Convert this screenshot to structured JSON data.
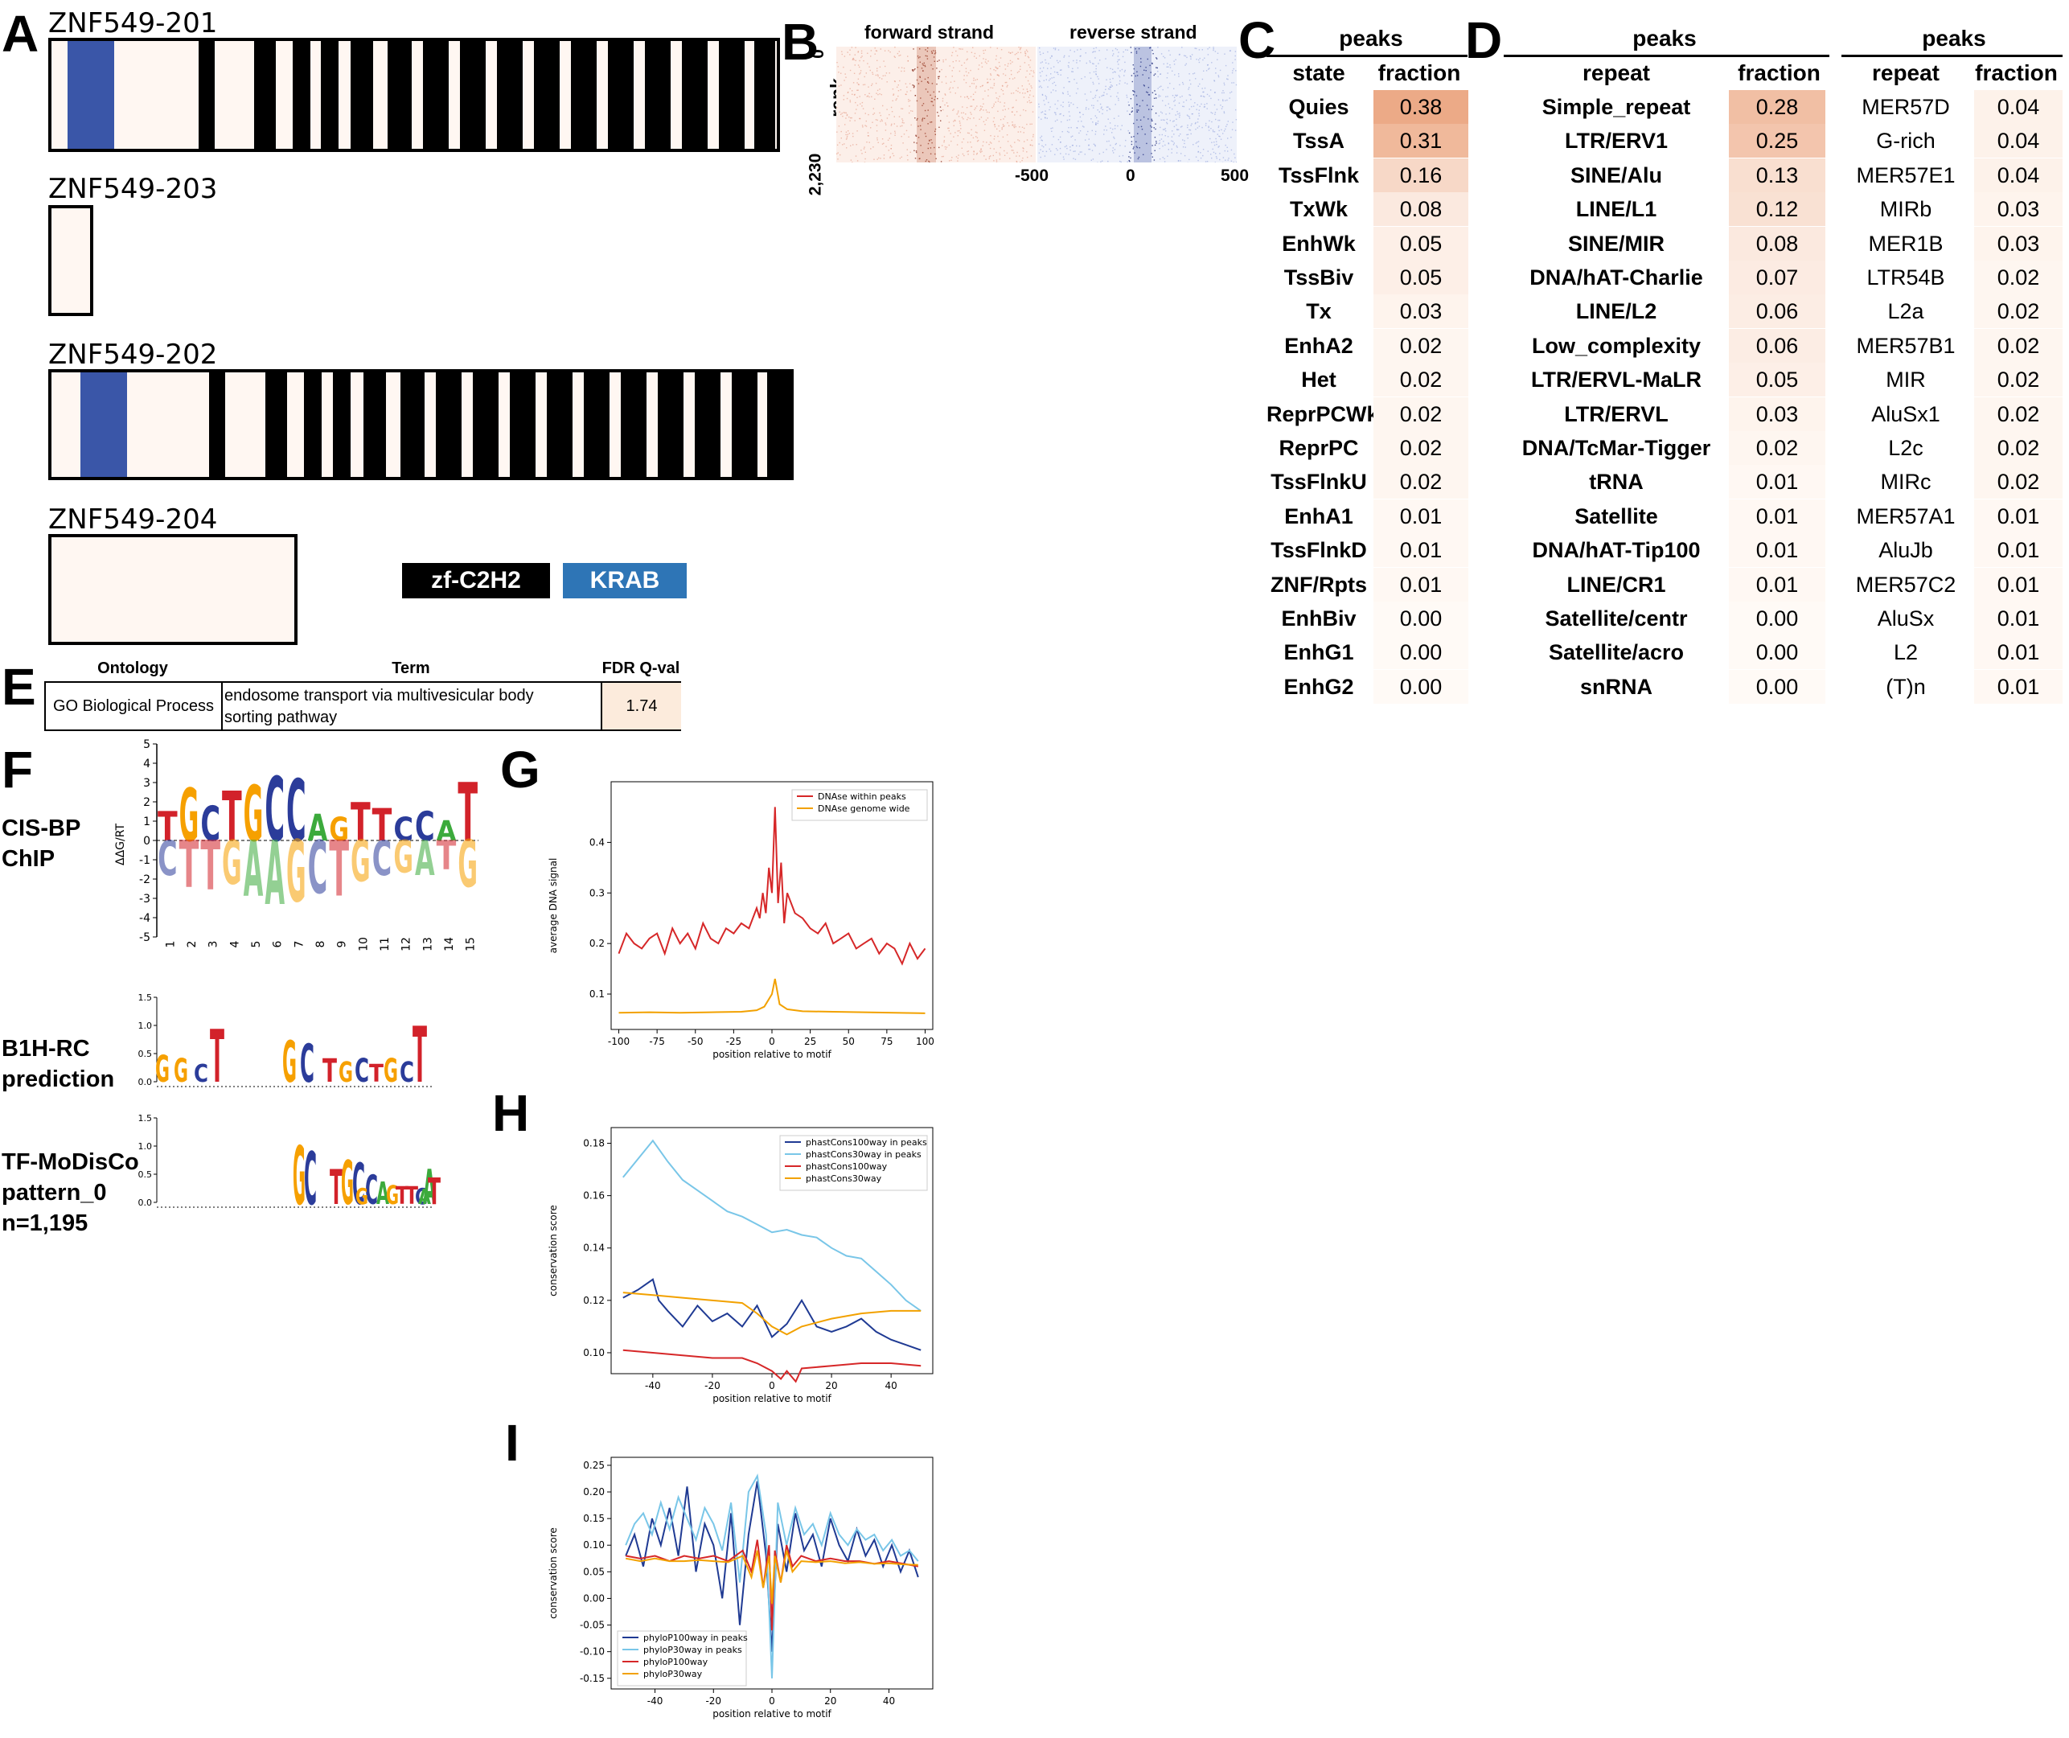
{
  "panels": {
    "A": "A",
    "B": "B",
    "C": "C",
    "D": "D",
    "E": "E",
    "F": "F",
    "G": "G",
    "H": "H",
    "I": "I"
  },
  "panel_a": {
    "isoforms": [
      {
        "name": "ZNF549-201"
      },
      {
        "name": "ZNF549-203"
      },
      {
        "name": "ZNF549-202"
      },
      {
        "name": "ZNF549-204"
      }
    ],
    "legend": [
      {
        "label": "zf-C2H2",
        "color": "#000000"
      },
      {
        "label": "KRAB",
        "color": "#2e75b6"
      }
    ],
    "colors": {
      "krab_domain": "#3a56a8",
      "background": "#fff7f2"
    }
  },
  "panel_b": {
    "forward_label": "forward strand",
    "reverse_label": "reverse strand",
    "y_label": "rank",
    "y_ticks": [
      "0",
      "2,230"
    ],
    "x_ticks": [
      "-500",
      "0",
      "500"
    ]
  },
  "panel_c": {
    "group_header": "peaks",
    "columns": [
      "state",
      "fraction"
    ],
    "rows": [
      {
        "state": "Quies",
        "fraction": "0.38"
      },
      {
        "state": "TssA",
        "fraction": "0.31"
      },
      {
        "state": "TssFlnk",
        "fraction": "0.16"
      },
      {
        "state": "TxWk",
        "fraction": "0.08"
      },
      {
        "state": "EnhWk",
        "fraction": "0.05"
      },
      {
        "state": "TssBiv",
        "fraction": "0.05"
      },
      {
        "state": "Tx",
        "fraction": "0.03"
      },
      {
        "state": "EnhA2",
        "fraction": "0.02"
      },
      {
        "state": "Het",
        "fraction": "0.02"
      },
      {
        "state": "ReprPCWk",
        "fraction": "0.02"
      },
      {
        "state": "ReprPC",
        "fraction": "0.02"
      },
      {
        "state": "TssFlnkU",
        "fraction": "0.02"
      },
      {
        "state": "EnhA1",
        "fraction": "0.01"
      },
      {
        "state": "TssFlnkD",
        "fraction": "0.01"
      },
      {
        "state": "ZNF/Rpts",
        "fraction": "0.01"
      },
      {
        "state": "EnhBiv",
        "fraction": "0.00"
      },
      {
        "state": "EnhG1",
        "fraction": "0.00"
      },
      {
        "state": "EnhG2",
        "fraction": "0.00"
      }
    ]
  },
  "panel_d": {
    "left": {
      "group_header": "peaks",
      "columns": [
        "repeat",
        "fraction"
      ],
      "rows": [
        {
          "repeat": "Simple_repeat",
          "fraction": "0.28"
        },
        {
          "repeat": "LTR/ERV1",
          "fraction": "0.25"
        },
        {
          "repeat": "SINE/Alu",
          "fraction": "0.13"
        },
        {
          "repeat": "LINE/L1",
          "fraction": "0.12"
        },
        {
          "repeat": "SINE/MIR",
          "fraction": "0.08"
        },
        {
          "repeat": "DNA/hAT-Charlie",
          "fraction": "0.07"
        },
        {
          "repeat": "LINE/L2",
          "fraction": "0.06"
        },
        {
          "repeat": "Low_complexity",
          "fraction": "0.06"
        },
        {
          "repeat": "LTR/ERVL-MaLR",
          "fraction": "0.05"
        },
        {
          "repeat": "LTR/ERVL",
          "fraction": "0.03"
        },
        {
          "repeat": "DNA/TcMar-Tigger",
          "fraction": "0.02"
        },
        {
          "repeat": "tRNA",
          "fraction": "0.01"
        },
        {
          "repeat": "Satellite",
          "fraction": "0.01"
        },
        {
          "repeat": "DNA/hAT-Tip100",
          "fraction": "0.01"
        },
        {
          "repeat": "LINE/CR1",
          "fraction": "0.01"
        },
        {
          "repeat": "Satellite/centr",
          "fraction": "0.00"
        },
        {
          "repeat": "Satellite/acro",
          "fraction": "0.00"
        },
        {
          "repeat": "snRNA",
          "fraction": "0.00"
        }
      ]
    },
    "right": {
      "group_header": "peaks",
      "columns": [
        "repeat",
        "fraction"
      ],
      "rows": [
        {
          "repeat": "MER57D",
          "fraction": "0.04"
        },
        {
          "repeat": "G-rich",
          "fraction": "0.04"
        },
        {
          "repeat": "MER57E1",
          "fraction": "0.04"
        },
        {
          "repeat": "MIRb",
          "fraction": "0.03"
        },
        {
          "repeat": "MER1B",
          "fraction": "0.03"
        },
        {
          "repeat": "LTR54B",
          "fraction": "0.02"
        },
        {
          "repeat": "L2a",
          "fraction": "0.02"
        },
        {
          "repeat": "MER57B1",
          "fraction": "0.02"
        },
        {
          "repeat": "MIR",
          "fraction": "0.02"
        },
        {
          "repeat": "AluSx1",
          "fraction": "0.02"
        },
        {
          "repeat": "L2c",
          "fraction": "0.02"
        },
        {
          "repeat": "MIRc",
          "fraction": "0.02"
        },
        {
          "repeat": "MER57A1",
          "fraction": "0.01"
        },
        {
          "repeat": "AluJb",
          "fraction": "0.01"
        },
        {
          "repeat": "MER57C2",
          "fraction": "0.01"
        },
        {
          "repeat": "AluSx",
          "fraction": "0.01"
        },
        {
          "repeat": "L2",
          "fraction": "0.01"
        },
        {
          "repeat": "(T)n",
          "fraction": "0.01"
        }
      ]
    }
  },
  "panel_e": {
    "columns": [
      "Ontology",
      "Term",
      "FDR Q-val"
    ],
    "rows": [
      {
        "ontology": "GO Biological Process",
        "term_line1": "endosome transport via multivesicular body",
        "term_line2": "sorting pathway",
        "fdr": "1.74"
      }
    ]
  },
  "panel_f": {
    "rows": [
      {
        "label": "CIS-BP\nChIP"
      },
      {
        "label": "B1H-RC\nprediction"
      },
      {
        "label": "TF-MoDisCo\npattern_0\nn=1,195"
      }
    ],
    "ddg_label": "ΔΔG/RT",
    "ddg_ticks": [
      "5",
      "4",
      "3",
      "2",
      "1",
      "0",
      "-1",
      "-2",
      "-3",
      "-4",
      "-5"
    ],
    "ddg_positions": [
      "1",
      "2",
      "3",
      "4",
      "5",
      "6",
      "7",
      "8",
      "9",
      "10",
      "11",
      "12",
      "13",
      "14",
      "15"
    ],
    "ddg_pos_letters": [
      "T",
      "G",
      "C",
      "T",
      "G",
      "C",
      "C",
      "A",
      "G",
      "T",
      "T",
      "C",
      "C",
      "A",
      "T"
    ],
    "ddg_neg_letters": [
      "C",
      "T",
      "T",
      "G",
      "A",
      "A",
      "G",
      "C",
      "T",
      "G",
      "C",
      "G",
      "A",
      "T",
      "G"
    ],
    "bits_ticks": [
      "1.5",
      "1.0",
      "0.5",
      "0.0"
    ],
    "b1h_letters": [
      "G",
      "G",
      "C",
      "T",
      "G",
      "C",
      "T",
      "G",
      "C",
      "T",
      "G",
      "C",
      "T"
    ],
    "modisco_letters": [
      "G",
      "C",
      "T",
      "G",
      "C",
      "C",
      "A",
      "G",
      "T",
      "T",
      "C",
      "A",
      "T",
      "G",
      "A"
    ],
    "letter_colors": {
      "A": "#3caa3c",
      "C": "#2b3c9a",
      "G": "#f6a000",
      "T": "#d2222a"
    }
  },
  "chart_data": [
    {
      "panel": "G",
      "type": "line",
      "xlabel": "position relative to motif",
      "ylabel": "average DNA signal",
      "xlim": [
        -105,
        105
      ],
      "ylim": [
        0.03,
        0.52
      ],
      "x_ticks": [
        "-100",
        "-75",
        "-50",
        "-25",
        "0",
        "25",
        "50",
        "75",
        "100"
      ],
      "y_ticks": [
        "0.1",
        "0.2",
        "0.3",
        "0.4"
      ],
      "legend_position": "top-right",
      "series": [
        {
          "name": "DNAse within peaks",
          "color": "#d62728",
          "x": [
            -100,
            -95,
            -90,
            -85,
            -80,
            -75,
            -70,
            -65,
            -60,
            -55,
            -50,
            -45,
            -40,
            -35,
            -30,
            -25,
            -20,
            -15,
            -10,
            -8,
            -6,
            -4,
            -2,
            0,
            2,
            4,
            6,
            8,
            10,
            15,
            20,
            25,
            30,
            35,
            40,
            45,
            50,
            55,
            60,
            65,
            70,
            75,
            80,
            85,
            90,
            95,
            100
          ],
          "y": [
            0.18,
            0.22,
            0.2,
            0.19,
            0.21,
            0.22,
            0.18,
            0.23,
            0.2,
            0.22,
            0.19,
            0.24,
            0.21,
            0.2,
            0.23,
            0.22,
            0.24,
            0.23,
            0.27,
            0.25,
            0.3,
            0.26,
            0.35,
            0.3,
            0.47,
            0.28,
            0.36,
            0.24,
            0.3,
            0.26,
            0.25,
            0.23,
            0.22,
            0.24,
            0.2,
            0.21,
            0.22,
            0.19,
            0.2,
            0.21,
            0.18,
            0.2,
            0.19,
            0.16,
            0.2,
            0.17,
            0.19
          ]
        },
        {
          "name": "DNAse genome wide",
          "color": "#f2a100",
          "x": [
            -100,
            -80,
            -60,
            -40,
            -20,
            -10,
            -5,
            -2,
            0,
            2,
            5,
            10,
            20,
            40,
            60,
            80,
            100
          ],
          "y": [
            0.063,
            0.064,
            0.063,
            0.064,
            0.065,
            0.068,
            0.075,
            0.09,
            0.1,
            0.13,
            0.08,
            0.07,
            0.066,
            0.065,
            0.064,
            0.063,
            0.062
          ]
        }
      ]
    },
    {
      "panel": "H",
      "type": "line",
      "xlabel": "position relative to motif",
      "ylabel": "conservation score",
      "xlim": [
        -54,
        54
      ],
      "ylim": [
        0.092,
        0.186
      ],
      "x_ticks": [
        "-40",
        "-20",
        "0",
        "20",
        "40"
      ],
      "y_ticks": [
        "0.10",
        "0.12",
        "0.14",
        "0.16",
        "0.18"
      ],
      "legend_position": "top-right",
      "series": [
        {
          "name": "phastCons100way in peaks",
          "color": "#1f3a93",
          "x": [
            -50,
            -45,
            -40,
            -38,
            -35,
            -30,
            -25,
            -20,
            -15,
            -10,
            -5,
            0,
            5,
            10,
            15,
            20,
            25,
            30,
            35,
            40,
            45,
            50
          ],
          "y": [
            0.121,
            0.124,
            0.128,
            0.12,
            0.116,
            0.11,
            0.118,
            0.112,
            0.115,
            0.11,
            0.118,
            0.106,
            0.111,
            0.12,
            0.11,
            0.108,
            0.11,
            0.113,
            0.108,
            0.105,
            0.103,
            0.101
          ]
        },
        {
          "name": "phastCons30way in peaks",
          "color": "#79c6e8",
          "x": [
            -50,
            -45,
            -40,
            -35,
            -30,
            -25,
            -20,
            -15,
            -10,
            -5,
            0,
            5,
            10,
            15,
            20,
            25,
            30,
            35,
            40,
            45,
            50
          ],
          "y": [
            0.167,
            0.174,
            0.181,
            0.173,
            0.166,
            0.162,
            0.158,
            0.154,
            0.152,
            0.149,
            0.146,
            0.147,
            0.145,
            0.144,
            0.14,
            0.137,
            0.136,
            0.131,
            0.126,
            0.12,
            0.116
          ]
        },
        {
          "name": "phastCons100way",
          "color": "#d62728",
          "x": [
            -50,
            -40,
            -30,
            -20,
            -10,
            -5,
            0,
            3,
            5,
            8,
            10,
            20,
            30,
            40,
            50
          ],
          "y": [
            0.101,
            0.1,
            0.099,
            0.098,
            0.098,
            0.096,
            0.093,
            0.09,
            0.093,
            0.089,
            0.094,
            0.095,
            0.096,
            0.096,
            0.095
          ]
        },
        {
          "name": "phastCons30way",
          "color": "#f2a100",
          "x": [
            -50,
            -40,
            -30,
            -20,
            -10,
            -5,
            0,
            5,
            10,
            20,
            30,
            40,
            50
          ],
          "y": [
            0.123,
            0.122,
            0.121,
            0.12,
            0.119,
            0.115,
            0.11,
            0.107,
            0.11,
            0.113,
            0.115,
            0.116,
            0.116
          ]
        }
      ]
    },
    {
      "panel": "I",
      "type": "line",
      "xlabel": "position relative to motif",
      "ylabel": "conservation score",
      "xlim": [
        -55,
        55
      ],
      "ylim": [
        -0.17,
        0.265
      ],
      "x_ticks": [
        "-40",
        "-20",
        "0",
        "20",
        "40"
      ],
      "y_ticks": [
        "0.25",
        "0.20",
        "0.15",
        "0.10",
        "0.05",
        "0.00",
        "-0.05",
        "-0.10",
        "-0.15"
      ],
      "legend_position": "bottom-left",
      "series": [
        {
          "name": "phyloP100way in peaks",
          "color": "#1f3a93",
          "x": [
            -50,
            -47,
            -44,
            -41,
            -38,
            -35,
            -32,
            -29,
            -26,
            -23,
            -20,
            -17,
            -14,
            -11,
            -8,
            -5,
            -2,
            0,
            2,
            5,
            8,
            11,
            14,
            17,
            20,
            23,
            26,
            29,
            32,
            35,
            38,
            41,
            44,
            47,
            50
          ],
          "y": [
            0.08,
            0.12,
            0.06,
            0.15,
            0.1,
            0.17,
            0.08,
            0.21,
            0.05,
            0.14,
            0.1,
            0.0,
            0.16,
            -0.05,
            0.12,
            0.22,
            0.08,
            -0.1,
            0.14,
            0.05,
            0.16,
            0.09,
            0.12,
            0.06,
            0.15,
            0.1,
            0.07,
            0.13,
            0.08,
            0.11,
            0.06,
            0.1,
            0.05,
            0.09,
            0.04
          ]
        },
        {
          "name": "phyloP30way in peaks",
          "color": "#79c6e8",
          "x": [
            -50,
            -47,
            -44,
            -41,
            -38,
            -35,
            -32,
            -29,
            -26,
            -23,
            -20,
            -17,
            -14,
            -11,
            -8,
            -5,
            -2,
            0,
            2,
            5,
            8,
            11,
            14,
            17,
            20,
            23,
            26,
            29,
            32,
            35,
            38,
            41,
            44,
            47,
            50
          ],
          "y": [
            0.1,
            0.14,
            0.16,
            0.12,
            0.18,
            0.13,
            0.19,
            0.15,
            0.11,
            0.17,
            0.14,
            0.09,
            0.18,
            0.03,
            0.2,
            0.23,
            0.12,
            -0.15,
            0.18,
            0.1,
            0.17,
            0.12,
            0.14,
            0.1,
            0.16,
            0.12,
            0.1,
            0.13,
            0.11,
            0.12,
            0.09,
            0.11,
            0.08,
            0.09,
            0.07
          ]
        },
        {
          "name": "phyloP100way",
          "color": "#d62728",
          "x": [
            -50,
            -45,
            -40,
            -35,
            -30,
            -25,
            -20,
            -15,
            -10,
            -7,
            -5,
            -3,
            -1,
            0,
            1,
            3,
            5,
            7,
            10,
            15,
            20,
            25,
            30,
            35,
            40,
            45,
            50
          ],
          "y": [
            0.08,
            0.075,
            0.08,
            0.07,
            0.08,
            0.075,
            0.08,
            0.07,
            0.09,
            0.05,
            0.11,
            0.02,
            0.1,
            -0.06,
            0.09,
            0.03,
            0.1,
            0.06,
            0.08,
            0.07,
            0.075,
            0.07,
            0.07,
            0.065,
            0.07,
            0.065,
            0.06
          ]
        },
        {
          "name": "phyloP30way",
          "color": "#f2a100",
          "x": [
            -50,
            -45,
            -40,
            -35,
            -30,
            -25,
            -20,
            -15,
            -10,
            -7,
            -5,
            -3,
            -1,
            0,
            1,
            3,
            5,
            7,
            10,
            15,
            20,
            25,
            30,
            35,
            40,
            45,
            50
          ],
          "y": [
            0.075,
            0.07,
            0.075,
            0.07,
            0.07,
            0.072,
            0.07,
            0.068,
            0.08,
            0.04,
            0.09,
            0.02,
            0.08,
            -0.01,
            0.08,
            0.03,
            0.09,
            0.05,
            0.07,
            0.068,
            0.07,
            0.066,
            0.068,
            0.065,
            0.066,
            0.064,
            0.063
          ]
        }
      ]
    }
  ]
}
